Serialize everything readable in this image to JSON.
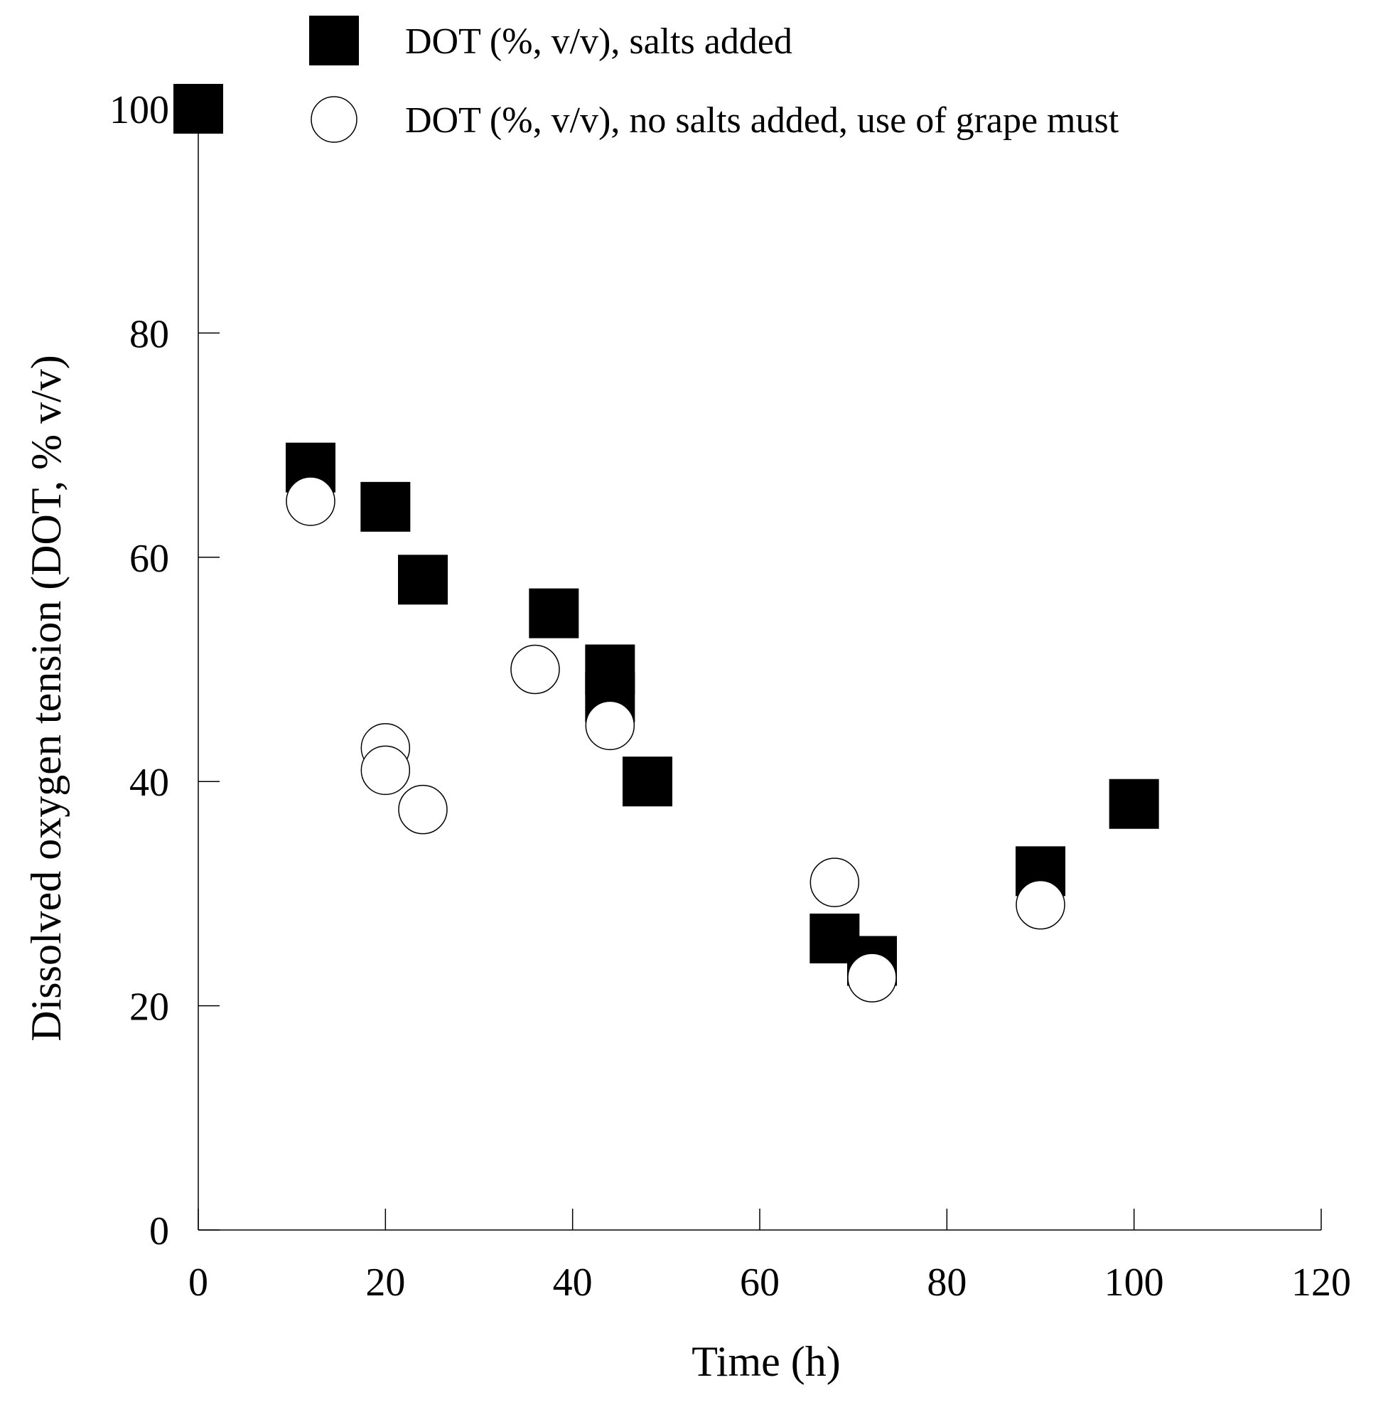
{
  "chart_data": {
    "type": "scatter",
    "title": "",
    "xlabel": "Time (h)",
    "ylabel": "Dissolved oxygen tension (DOT, % v/v)",
    "xlim": [
      0,
      120
    ],
    "ylim": [
      0,
      100
    ],
    "xticks": [
      0,
      20,
      40,
      60,
      80,
      100,
      120
    ],
    "yticks": [
      0,
      20,
      40,
      60,
      80,
      100
    ],
    "grid": false,
    "legend_position": "top",
    "series": [
      {
        "name": "DOT (%, v/v), salts added",
        "marker": "filled-square",
        "color": "#000000",
        "points": [
          {
            "x": 0,
            "y": 100
          },
          {
            "x": 12,
            "y": 68
          },
          {
            "x": 20,
            "y": 64.5
          },
          {
            "x": 24,
            "y": 58
          },
          {
            "x": 38,
            "y": 55
          },
          {
            "x": 44,
            "y": 50
          },
          {
            "x": 44,
            "y": 47.5
          },
          {
            "x": 48,
            "y": 40
          },
          {
            "x": 68,
            "y": 26
          },
          {
            "x": 72,
            "y": 24
          },
          {
            "x": 90,
            "y": 32
          },
          {
            "x": 100,
            "y": 38
          }
        ]
      },
      {
        "name": "DOT (%, v/v), no salts added, use of grape must",
        "marker": "open-circle",
        "color": "#000000",
        "points": [
          {
            "x": 12,
            "y": 65
          },
          {
            "x": 20,
            "y": 43
          },
          {
            "x": 20,
            "y": 41
          },
          {
            "x": 24,
            "y": 37.5
          },
          {
            "x": 36,
            "y": 50
          },
          {
            "x": 44,
            "y": 45
          },
          {
            "x": 68,
            "y": 31
          },
          {
            "x": 72,
            "y": 22.5
          },
          {
            "x": 90,
            "y": 29
          }
        ]
      }
    ]
  }
}
